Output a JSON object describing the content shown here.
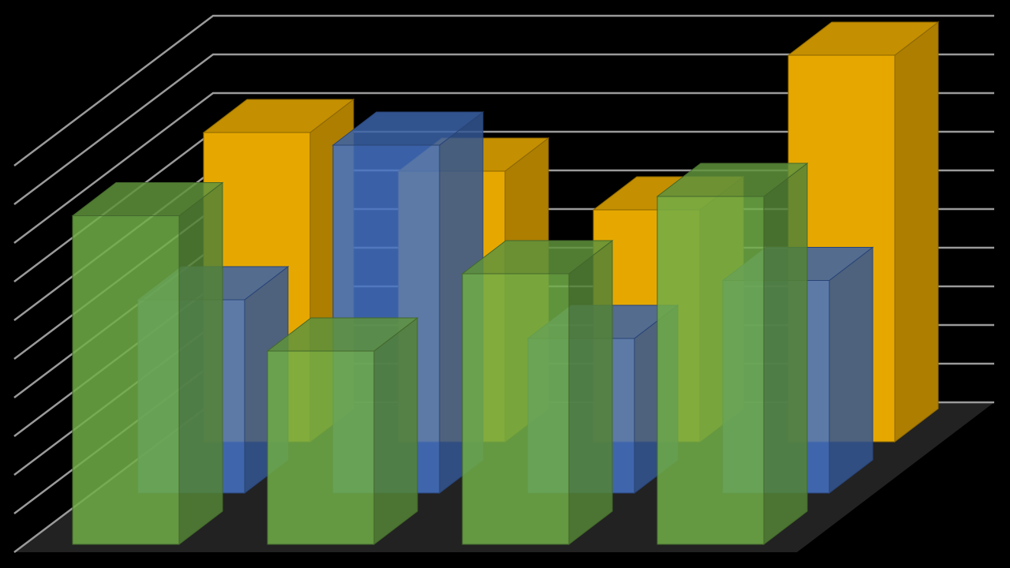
{
  "chart_data": {
    "type": "bar3d",
    "series": [
      {
        "color": "#e6a800",
        "values": [
          8,
          7,
          6,
          10
        ]
      },
      {
        "color": "#4472c4",
        "values": [
          5,
          9,
          4,
          5.5
        ]
      },
      {
        "color": "#70ad47",
        "values": [
          8.5,
          5,
          7,
          9
        ]
      }
    ],
    "ylim": [
      0,
      10
    ],
    "yticks": [
      0,
      1,
      2,
      3,
      4,
      5,
      6,
      7,
      8,
      9,
      10
    ],
    "grid": true
  }
}
